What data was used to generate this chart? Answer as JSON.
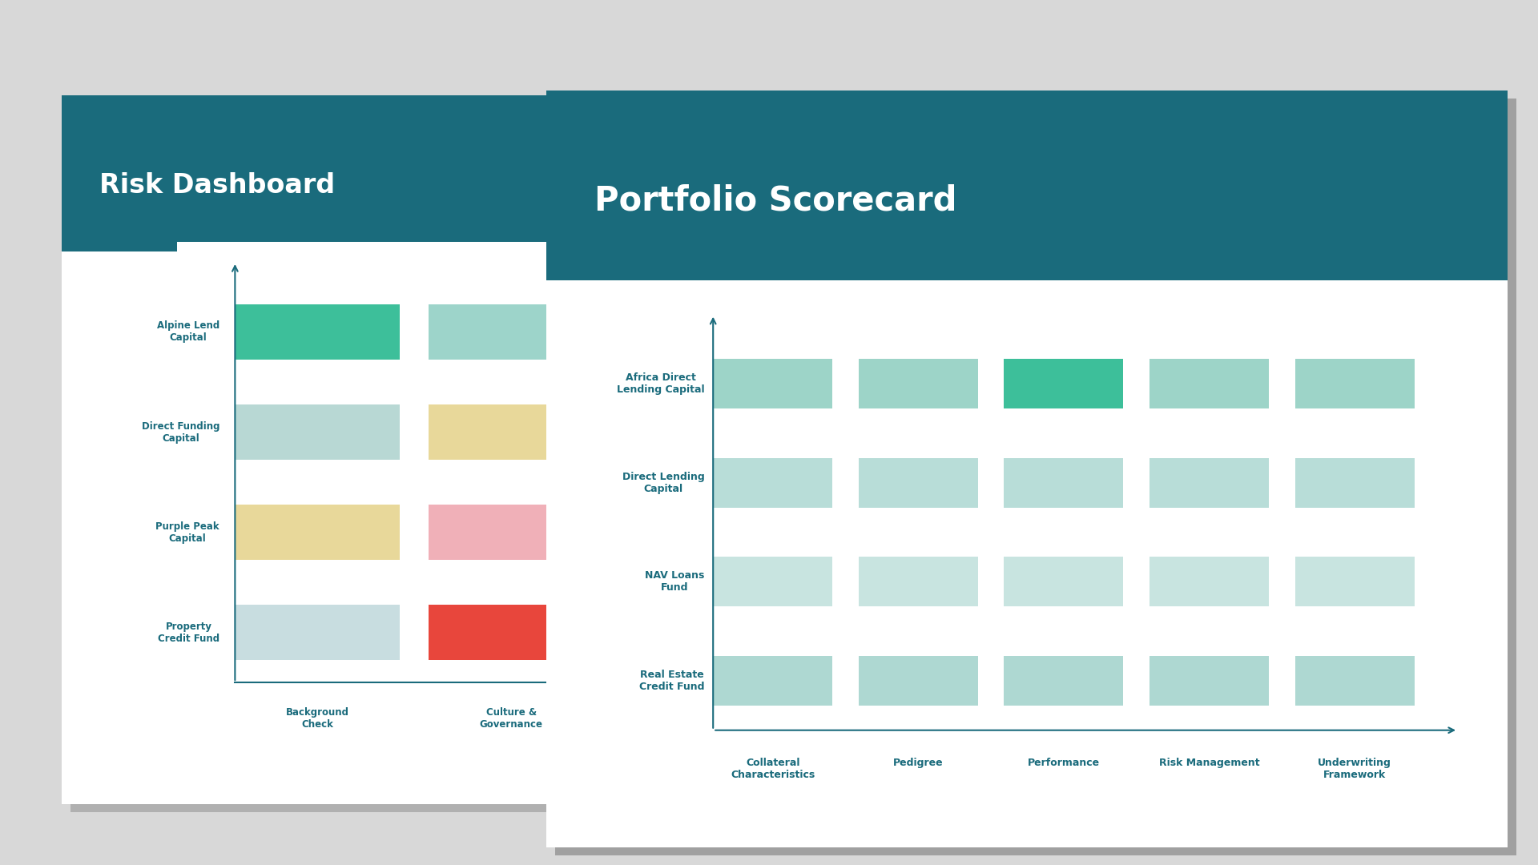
{
  "bg_color": "#d8d8d8",
  "slide1": {
    "title": "Risk Dashboard",
    "header_color": "#1a6b7c",
    "header_text_color": "#ffffff",
    "slide_bg": "#ffffff",
    "shadow_color": "#b0b0b0",
    "rows": [
      "Alpine Lend\nCapital",
      "Direct Funding\nCapital",
      "Purple Peak\nCapital",
      "Property\nCredit Fund"
    ],
    "cols": [
      "Background\nCheck",
      "Culture &\nGovernance"
    ],
    "colors": [
      [
        "#3dbf9a",
        "#9dd4ca"
      ],
      [
        "#b8d8d4",
        "#e8d89a"
      ],
      [
        "#e8d89a",
        "#f0b0b8"
      ],
      [
        "#c8dde0",
        "#e8463c"
      ]
    ],
    "axis_color": "#1a6b7c",
    "label_color": "#1a6b7c"
  },
  "slide2": {
    "title": "Portfolio Scorecard",
    "header_color": "#1a6b7c",
    "header_text_color": "#ffffff",
    "slide_bg": "#ffffff",
    "shadow_color": "#a0a0a0",
    "rows": [
      "Africa Direct\nLending Capital",
      "Direct Lending\nCapital",
      "NAV Loans\nFund",
      "Real Estate\nCredit Fund"
    ],
    "cols": [
      "Collateral\nCharacteristics",
      "Pedigree",
      "Performance",
      "Risk Management",
      "Underwriting\nFramework"
    ],
    "colors": [
      [
        "#9dd4c8",
        "#9dd4c8",
        "#3dbf9a",
        "#9dd4c8",
        "#9dd4c8"
      ],
      [
        "#b8ddd8",
        "#b8ddd8",
        "#b8ddd8",
        "#b8ddd8",
        "#b8ddd8"
      ],
      [
        "#c8e4e0",
        "#c8e4e0",
        "#c8e4e0",
        "#c8e4e0",
        "#c8e4e0"
      ],
      [
        "#aed8d2",
        "#aed8d2",
        "#aed8d2",
        "#aed8d2",
        "#aed8d2"
      ]
    ],
    "axis_color": "#1a6b7c",
    "label_color": "#1a6b7c"
  }
}
